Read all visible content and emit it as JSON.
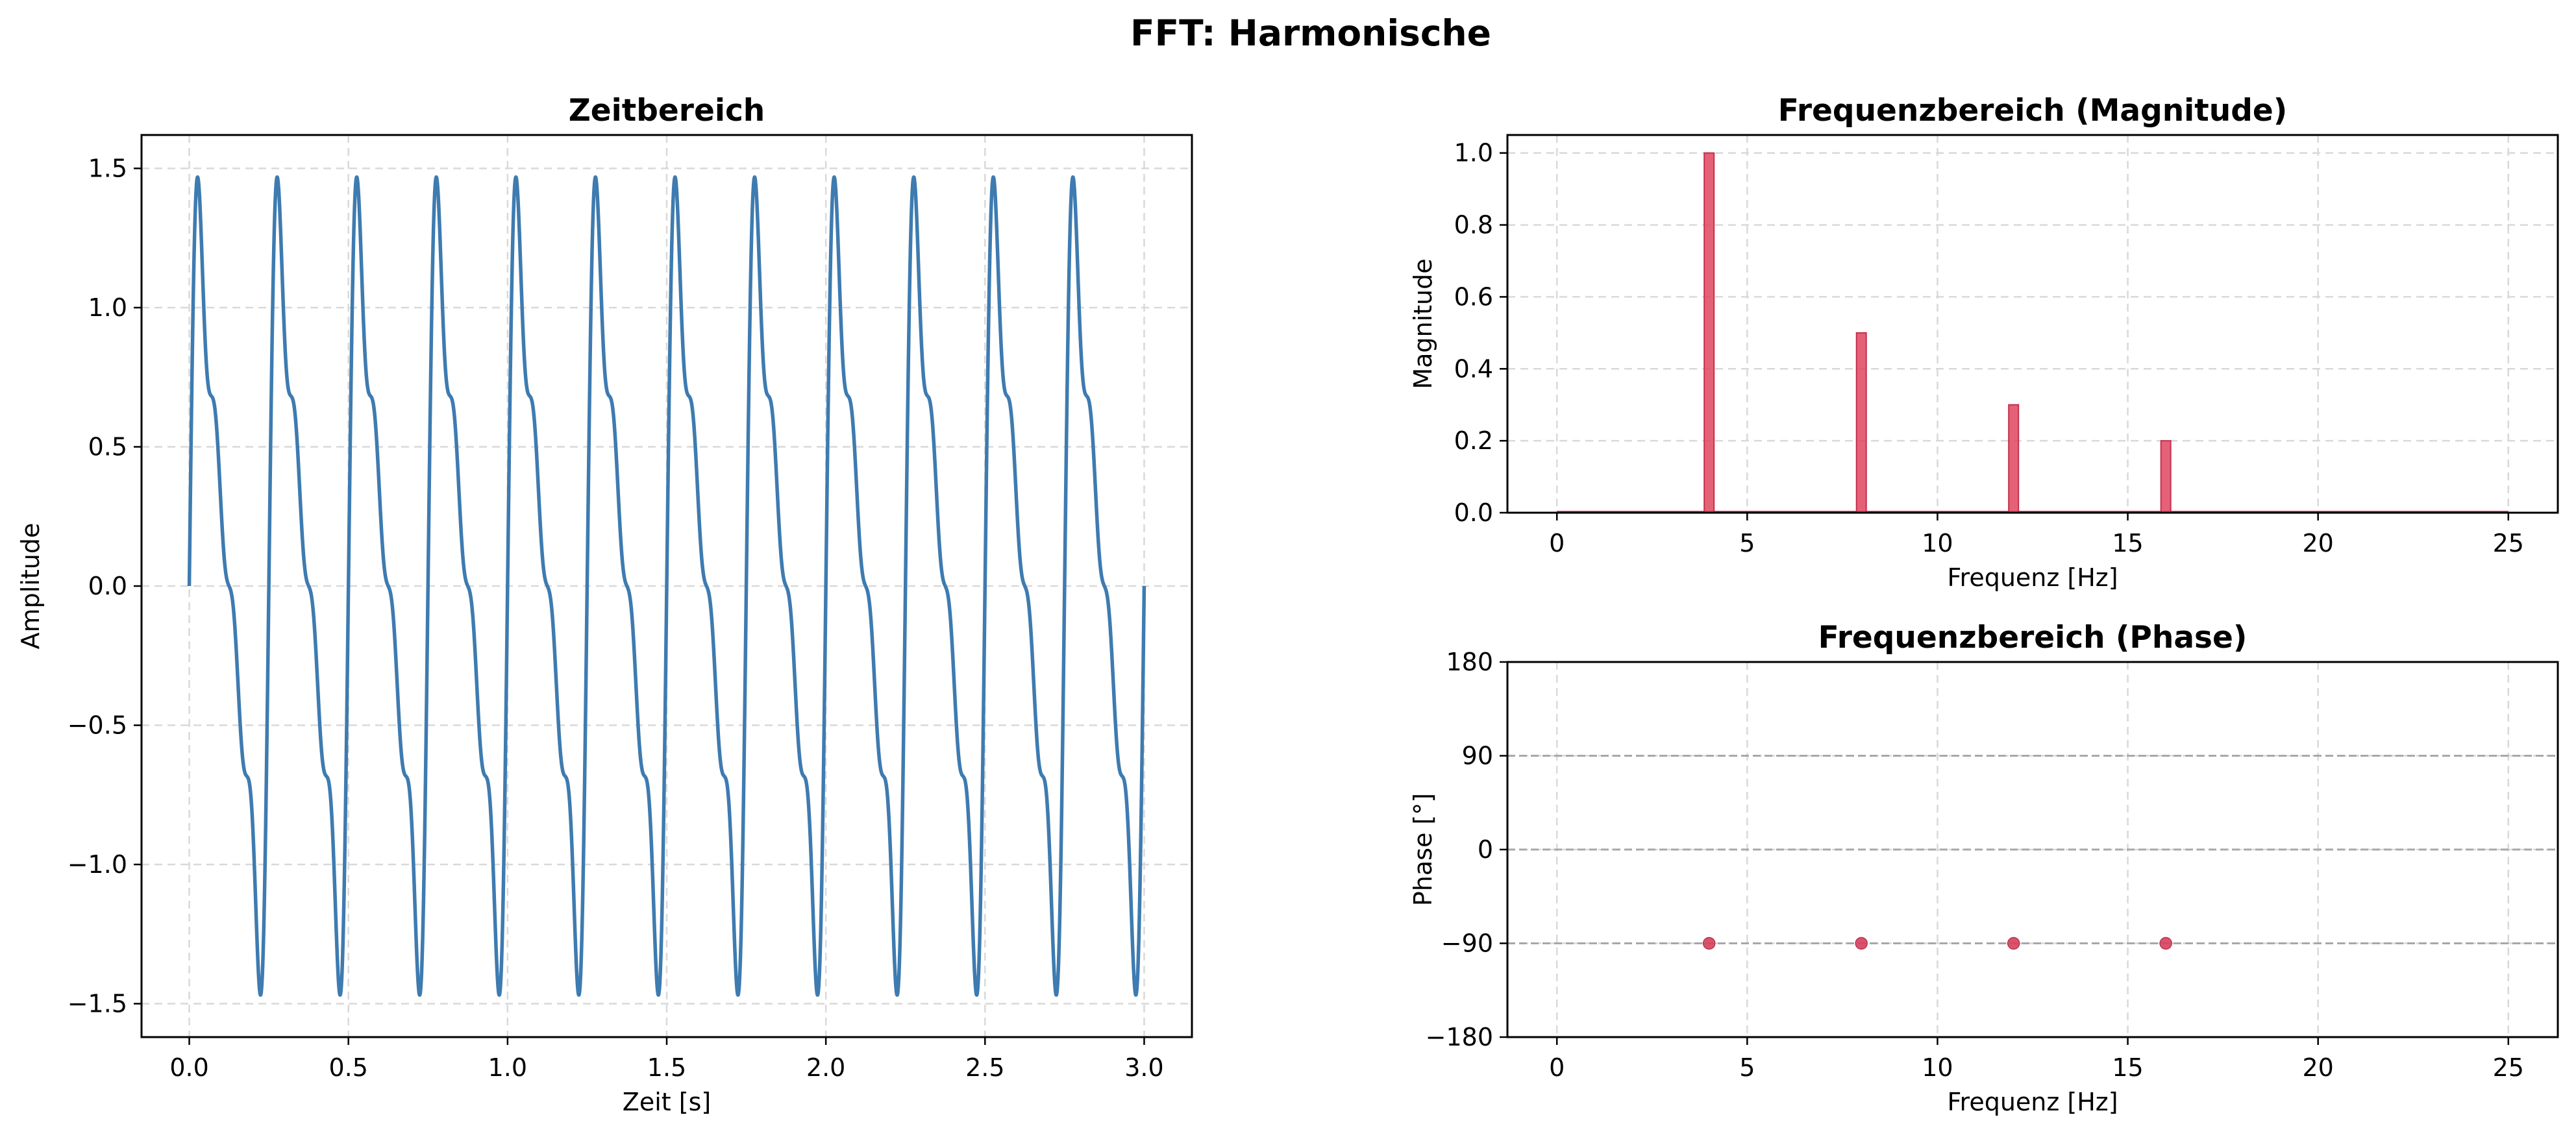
{
  "figure": {
    "title": "FFT: Harmonische"
  },
  "chart_data": [
    {
      "id": "time",
      "type": "line",
      "title": "Zeitbereich",
      "xlabel": "Zeit [s]",
      "ylabel": "Amplitude",
      "xlim": [
        -0.15,
        3.15
      ],
      "ylim": [
        -1.62,
        1.62
      ],
      "xticks": [
        0.0,
        0.5,
        1.0,
        1.5,
        2.0,
        2.5,
        3.0
      ],
      "xtick_labels": [
        "0.0",
        "0.5",
        "1.0",
        "1.5",
        "2.0",
        "2.5",
        "3.0"
      ],
      "yticks": [
        -1.5,
        -1.0,
        -0.5,
        0.0,
        0.5,
        1.0,
        1.5
      ],
      "ytick_labels": [
        "−1.5",
        "−1.0",
        "−0.5",
        "0.0",
        "0.5",
        "1.0",
        "1.5"
      ],
      "grid": true,
      "color": "#3e7bb0",
      "signal": {
        "t_range": [
          0,
          3
        ],
        "components": [
          {
            "freq_hz": 4,
            "amplitude": 1.0
          },
          {
            "freq_hz": 8,
            "amplitude": 0.5
          },
          {
            "freq_hz": 12,
            "amplitude": 0.3
          },
          {
            "freq_hz": 16,
            "amplitude": 0.2
          }
        ]
      }
    },
    {
      "id": "mag",
      "type": "bar",
      "title": "Frequenzbereich (Magnitude)",
      "xlabel": "Frequenz [Hz]",
      "ylabel": "Magnitude",
      "xlim": [
        -1.3,
        26.3
      ],
      "ylim": [
        0,
        1.05
      ],
      "xticks": [
        0,
        5,
        10,
        15,
        20,
        25
      ],
      "xtick_labels": [
        "0",
        "5",
        "10",
        "15",
        "20",
        "25"
      ],
      "yticks": [
        0.0,
        0.2,
        0.4,
        0.6,
        0.8,
        1.0
      ],
      "ytick_labels": [
        "0.0",
        "0.2",
        "0.4",
        "0.6",
        "0.8",
        "1.0"
      ],
      "grid": true,
      "color": "#e0455f",
      "baseline_range": [
        0,
        25
      ],
      "x": [
        4,
        8,
        12,
        16
      ],
      "values": [
        1.0,
        0.5,
        0.3,
        0.2
      ]
    },
    {
      "id": "phase",
      "type": "scatter",
      "title": "Frequenzbereich (Phase)",
      "xlabel": "Frequenz [Hz]",
      "ylabel": "Phase [°]",
      "xlim": [
        -1.3,
        26.3
      ],
      "ylim": [
        -180,
        180
      ],
      "xticks": [
        0,
        5,
        10,
        15,
        20,
        25
      ],
      "xtick_labels": [
        "0",
        "5",
        "10",
        "15",
        "20",
        "25"
      ],
      "yticks": [
        -180,
        -90,
        0,
        90,
        180
      ],
      "ytick_labels": [
        "−180",
        "−90",
        "0",
        "90",
        "180"
      ],
      "reference_lines": [
        -90,
        0,
        90
      ],
      "grid": true,
      "color": "#d6405c",
      "x": [
        4,
        8,
        12,
        16
      ],
      "values": [
        -90,
        -90,
        -90,
        -90
      ]
    }
  ]
}
